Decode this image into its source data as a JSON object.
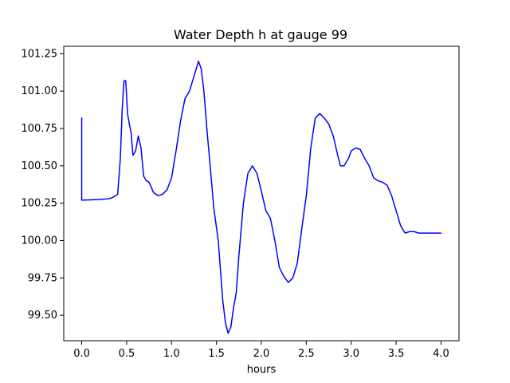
{
  "chart_data": {
    "type": "line",
    "title": "Water Depth h at gauge 99",
    "xlabel": "hours",
    "ylabel": "",
    "xlim": [
      -0.2,
      4.2
    ],
    "ylim": [
      99.33,
      101.3
    ],
    "grid": false,
    "x_ticks": [
      0.0,
      0.5,
      1.0,
      1.5,
      2.0,
      2.5,
      3.0,
      3.5,
      4.0
    ],
    "x_tick_labels": [
      "0.0",
      "0.5",
      "1.0",
      "1.5",
      "2.0",
      "2.5",
      "3.0",
      "3.5",
      "4.0"
    ],
    "y_ticks": [
      99.5,
      99.75,
      100.0,
      100.25,
      100.5,
      100.75,
      101.0,
      101.25
    ],
    "y_tick_labels": [
      "99.50",
      "99.75",
      "100.00",
      "100.25",
      "100.50",
      "100.75",
      "101.00",
      "101.25"
    ],
    "series": [
      {
        "name": "",
        "color": "#0000ff",
        "x": [
          0.0,
          0.0,
          0.2,
          0.3,
          0.35,
          0.4,
          0.43,
          0.45,
          0.47,
          0.49,
          0.51,
          0.53,
          0.55,
          0.57,
          0.6,
          0.63,
          0.66,
          0.69,
          0.72,
          0.75,
          0.8,
          0.85,
          0.9,
          0.95,
          1.0,
          1.05,
          1.1,
          1.15,
          1.2,
          1.25,
          1.3,
          1.33,
          1.36,
          1.38,
          1.4,
          1.43,
          1.47,
          1.52,
          1.57,
          1.6,
          1.63,
          1.66,
          1.69,
          1.72,
          1.75,
          1.8,
          1.85,
          1.9,
          1.95,
          2.0,
          2.05,
          2.1,
          2.15,
          2.2,
          2.25,
          2.3,
          2.35,
          2.4,
          2.45,
          2.5,
          2.55,
          2.6,
          2.65,
          2.7,
          2.75,
          2.8,
          2.85,
          2.88,
          2.92,
          2.97,
          3.0,
          3.05,
          3.1,
          3.15,
          3.2,
          3.25,
          3.3,
          3.35,
          3.4,
          3.45,
          3.5,
          3.55,
          3.6,
          3.65,
          3.7,
          3.75,
          3.8,
          3.85,
          3.9,
          3.95,
          4.0
        ],
        "y": [
          100.82,
          100.27,
          100.275,
          100.28,
          100.29,
          100.31,
          100.55,
          100.87,
          101.07,
          101.07,
          100.85,
          100.78,
          100.72,
          100.57,
          100.6,
          100.7,
          100.62,
          100.43,
          100.4,
          100.39,
          100.32,
          100.3,
          100.31,
          100.34,
          100.42,
          100.6,
          100.8,
          100.95,
          101.0,
          101.1,
          101.2,
          101.15,
          101.0,
          100.85,
          100.7,
          100.5,
          100.22,
          100.0,
          99.6,
          99.45,
          99.38,
          99.42,
          99.55,
          99.65,
          99.9,
          100.25,
          100.45,
          100.5,
          100.45,
          100.33,
          100.2,
          100.15,
          100.0,
          99.82,
          99.76,
          99.72,
          99.75,
          99.85,
          100.08,
          100.3,
          100.62,
          100.82,
          100.85,
          100.82,
          100.78,
          100.7,
          100.57,
          100.5,
          100.5,
          100.55,
          100.6,
          100.62,
          100.61,
          100.55,
          100.5,
          100.42,
          100.4,
          100.39,
          100.37,
          100.3,
          100.2,
          100.1,
          100.05,
          100.06,
          100.06,
          100.05,
          100.05,
          100.05,
          100.05,
          100.05,
          100.05
        ]
      }
    ]
  }
}
